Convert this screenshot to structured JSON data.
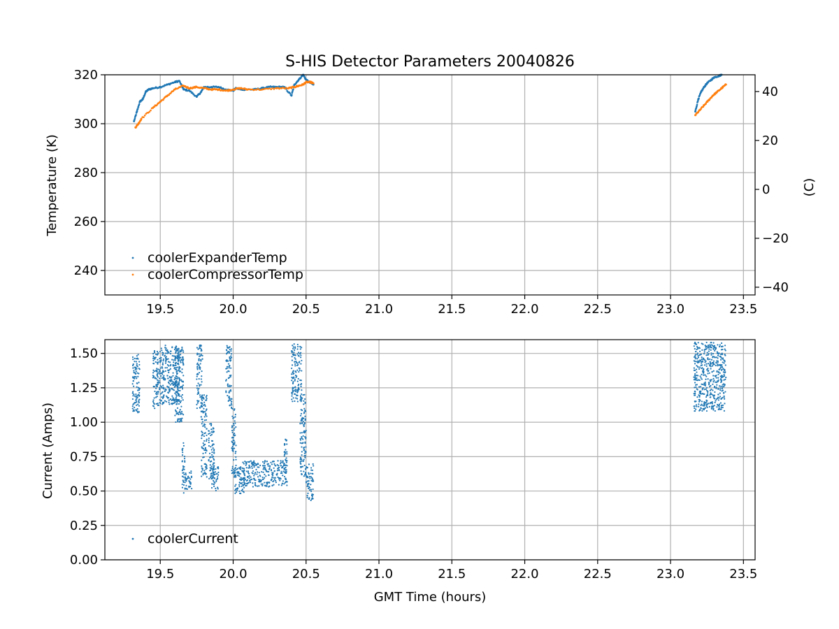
{
  "title": "S-HIS Detector Parameters 20040826",
  "colors": {
    "expander": "#1f77b4",
    "compressor": "#ff7f0e",
    "current": "#1f77b4",
    "grid": "#b0b0b0"
  },
  "chart_data": [
    {
      "type": "scatter",
      "title": "S-HIS Detector Parameters 20040826",
      "xlabel": "",
      "ylabel": "Temperature (K)",
      "y2label": "(C)",
      "xlim": [
        19.12,
        23.58
      ],
      "ylim": [
        230,
        320
      ],
      "y2lim": [
        -43.15,
        46.85
      ],
      "xticks": [
        "19.5",
        "20.0",
        "20.5",
        "21.0",
        "21.5",
        "22.0",
        "22.5",
        "23.0",
        "23.5"
      ],
      "yticks": [
        "240",
        "260",
        "280",
        "300",
        "320"
      ],
      "y2ticks": [
        "−40",
        "−20",
        "0",
        "20",
        "40"
      ],
      "grid": true,
      "legend_position": "lower-left",
      "series": [
        {
          "name": "coolerExpanderTemp",
          "x": [
            19.32,
            19.34,
            19.36,
            19.38,
            19.4,
            19.42,
            19.45,
            19.5,
            19.55,
            19.6,
            19.63,
            19.66,
            19.7,
            19.75,
            19.78,
            19.8,
            19.85,
            19.9,
            19.95,
            20.0,
            20.02,
            20.05,
            20.1,
            20.15,
            20.2,
            20.25,
            20.3,
            20.35,
            20.4,
            20.42,
            20.45,
            20.48,
            20.5,
            20.52,
            20.55,
            23.17,
            23.19,
            23.21,
            23.23,
            23.25,
            23.28,
            23.3,
            23.33,
            23.35
          ],
          "y": [
            301,
            305,
            309,
            310,
            313,
            314,
            314.5,
            315,
            316,
            317,
            317.5,
            314,
            313.5,
            311,
            313,
            315,
            315,
            315,
            314,
            313.5,
            314.5,
            314,
            314,
            314,
            314.5,
            315,
            315,
            315,
            311.5,
            316,
            318,
            320,
            318,
            317,
            316,
            305,
            310,
            313,
            315,
            316.5,
            318,
            319,
            319.5,
            320
          ]
        },
        {
          "name": "coolerCompressorTemp",
          "x": [
            19.33,
            19.35,
            19.37,
            19.45,
            19.5,
            19.55,
            19.6,
            19.66,
            19.7,
            19.75,
            19.8,
            19.85,
            19.9,
            19.95,
            20.0,
            20.05,
            20.1,
            20.2,
            20.3,
            20.38,
            20.42,
            20.45,
            20.48,
            20.5,
            20.53,
            20.55,
            23.17,
            23.2,
            23.23,
            23.26,
            23.29,
            23.32,
            23.35,
            23.38
          ],
          "y": [
            298.5,
            300,
            302,
            306.5,
            309,
            311.5,
            314,
            315.5,
            314.5,
            315,
            314.5,
            314,
            314,
            313.5,
            314,
            314.5,
            314,
            314,
            314.5,
            314.5,
            315,
            315.5,
            316,
            317,
            317,
            316.5,
            303.5,
            305.5,
            307.5,
            309.5,
            311.5,
            313,
            314.5,
            316
          ]
        }
      ]
    },
    {
      "type": "scatter",
      "xlabel": "GMT Time (hours)",
      "ylabel": "Current (Amps)",
      "xlim": [
        19.12,
        23.58
      ],
      "ylim": [
        0,
        1.6
      ],
      "xticks": [
        "19.5",
        "20.0",
        "20.5",
        "21.0",
        "21.5",
        "22.0",
        "22.5",
        "23.0",
        "23.5"
      ],
      "yticks": [
        "0.00",
        "0.25",
        "0.50",
        "0.75",
        "1.00",
        "1.25",
        "1.50"
      ],
      "grid": true,
      "legend_position": "lower-left",
      "series": [
        {
          "name": "coolerCurrent",
          "clusters": [
            {
              "x": [
                19.31,
                19.36
              ],
              "y": [
                1.07,
                1.51
              ]
            },
            {
              "x": [
                19.45,
                19.5
              ],
              "y": [
                1.1,
                1.53
              ]
            },
            {
              "x": [
                19.5,
                19.63
              ],
              "y": [
                1.13,
                1.56
              ]
            },
            {
              "x": [
                19.6,
                19.66
              ],
              "y": [
                1.0,
                1.55
              ]
            },
            {
              "x": [
                19.65,
                19.67
              ],
              "y": [
                0.48,
                0.85
              ]
            },
            {
              "x": [
                19.67,
                19.72
              ],
              "y": [
                0.5,
                0.65
              ]
            },
            {
              "x": [
                19.75,
                19.79
              ],
              "y": [
                1.1,
                1.56
              ]
            },
            {
              "x": [
                19.78,
                19.82
              ],
              "y": [
                0.6,
                1.2
              ]
            },
            {
              "x": [
                19.83,
                19.87
              ],
              "y": [
                0.55,
                1.0
              ]
            },
            {
              "x": [
                19.85,
                19.9
              ],
              "y": [
                0.5,
                0.68
              ]
            },
            {
              "x": [
                19.95,
                19.99
              ],
              "y": [
                1.1,
                1.56
              ]
            },
            {
              "x": [
                19.99,
                20.02
              ],
              "y": [
                0.6,
                1.1
              ]
            },
            {
              "x": [
                20.01,
                20.08
              ],
              "y": [
                0.48,
                0.68
              ]
            },
            {
              "x": [
                20.05,
                20.37
              ],
              "y": [
                0.53,
                0.72
              ]
            },
            {
              "x": [
                20.35,
                20.37
              ],
              "y": [
                0.6,
                0.88
              ]
            },
            {
              "x": [
                20.4,
                20.47
              ],
              "y": [
                1.15,
                1.57
              ]
            },
            {
              "x": [
                20.46,
                20.5
              ],
              "y": [
                0.6,
                1.2
              ]
            },
            {
              "x": [
                20.5,
                20.55
              ],
              "y": [
                0.43,
                0.7
              ]
            },
            {
              "x": [
                23.16,
                23.38
              ],
              "y": [
                1.08,
                1.58
              ]
            }
          ]
        }
      ]
    }
  ]
}
